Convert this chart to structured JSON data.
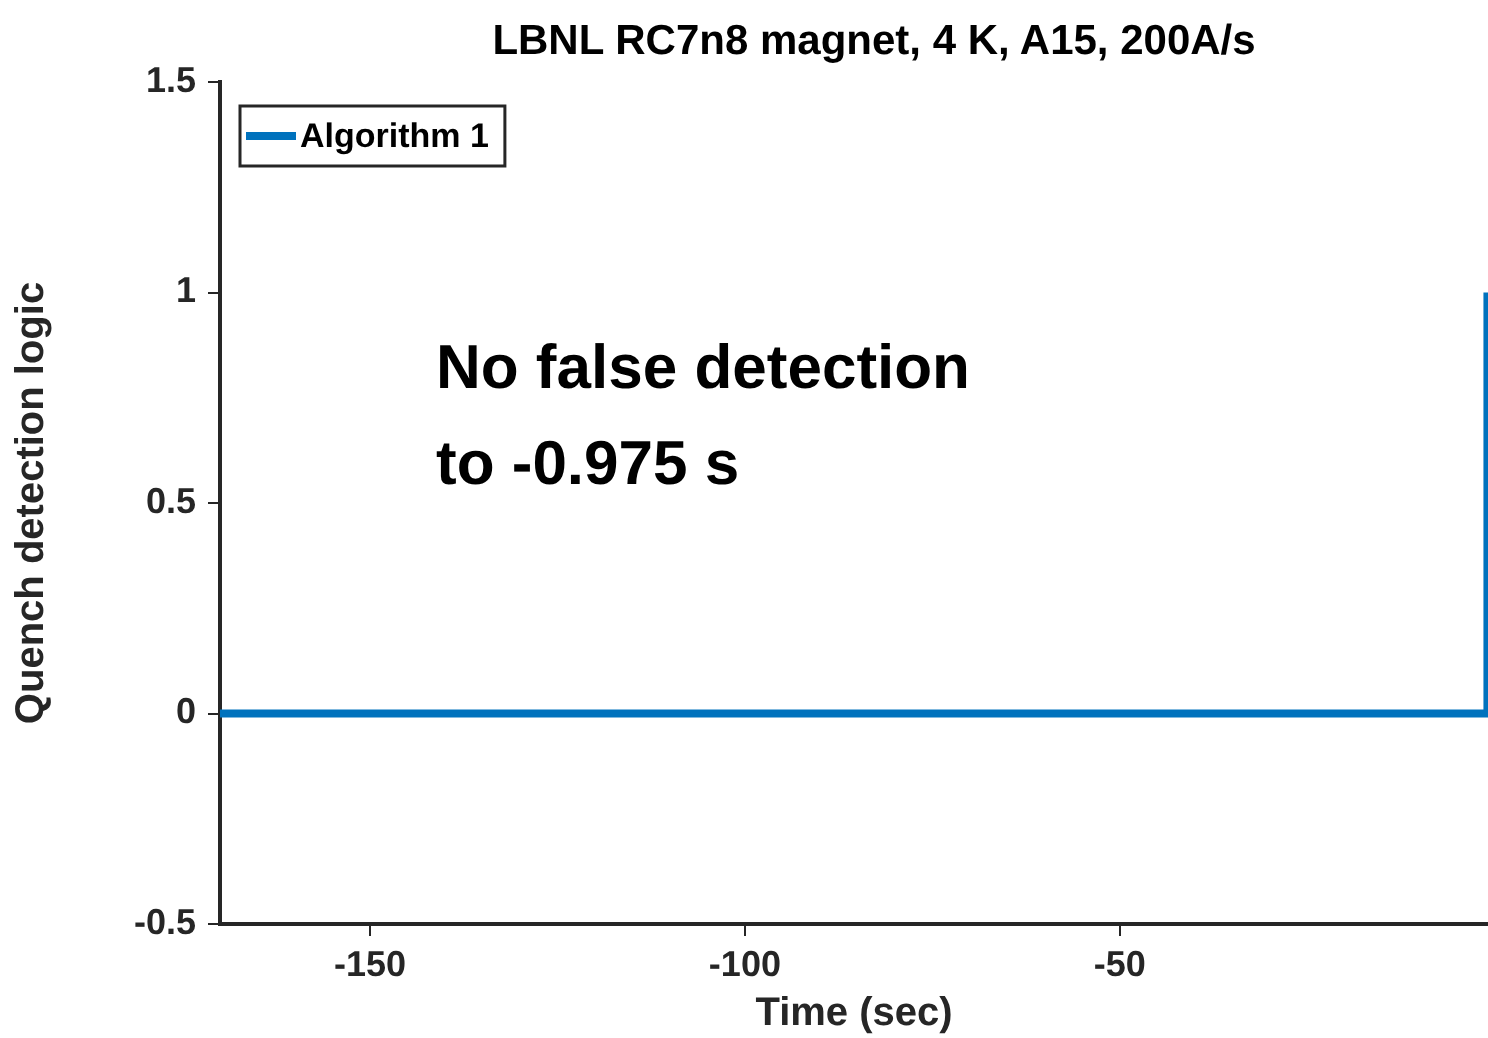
{
  "chart_data": {
    "type": "step",
    "title": "LBNL RC7n8 magnet, 4 K, A15, 200A/s",
    "xlabel": "Time (sec)",
    "ylabel": "Quench detection logic",
    "x": [
      -170,
      -0.975
    ],
    "series": [
      {
        "name": "Algorithm 1",
        "color": "#0072bd",
        "values": [
          0,
          1
        ]
      }
    ],
    "xlim": [
      -170,
      -0.9
    ],
    "xticks": [
      -150,
      -100,
      -50
    ],
    "ylim": [
      -0.5,
      1.5
    ],
    "yticks": [
      -0.5,
      0,
      0.5,
      1,
      1.5
    ],
    "grid": false,
    "legend": "top left",
    "annotations": [
      "No false detection\nto -0.975 s"
    ]
  }
}
